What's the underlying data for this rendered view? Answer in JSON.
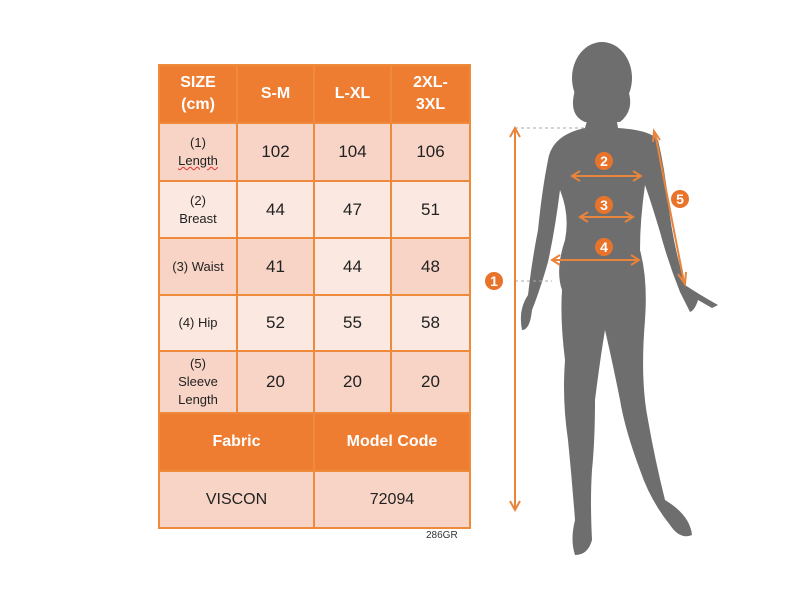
{
  "table": {
    "headers": [
      "SIZE\n(cm)",
      "S-M",
      "L-XL",
      "2XL-\n3XL"
    ],
    "rows": [
      {
        "label_num": "(1)",
        "label": "Length",
        "values": [
          "102",
          "104",
          "106"
        ]
      },
      {
        "label_num": "(2)",
        "label": "Breast",
        "values": [
          "44",
          "47",
          "51"
        ]
      },
      {
        "label_num": "",
        "label": "(3) Waist",
        "values": [
          "41",
          "44",
          "48"
        ]
      },
      {
        "label_num": "",
        "label": "(4) Hip",
        "values": [
          "52",
          "55",
          "58"
        ]
      },
      {
        "label_num": "(5)",
        "label": "Sleeve\nLength",
        "values": [
          "20",
          "20",
          "20"
        ]
      }
    ],
    "footer_headers": [
      "Fabric",
      "Model Code"
    ],
    "footer_values": [
      "VISCON",
      "72094"
    ]
  },
  "product_code": "286GR",
  "figure": {
    "markers": [
      "1",
      "2",
      "3",
      "4",
      "5"
    ]
  },
  "colors": {
    "accent": "#ee7d31",
    "cell_dark": "#f8d4c6",
    "cell_light": "#fbe8e0",
    "silhouette": "#6e6e6e"
  }
}
